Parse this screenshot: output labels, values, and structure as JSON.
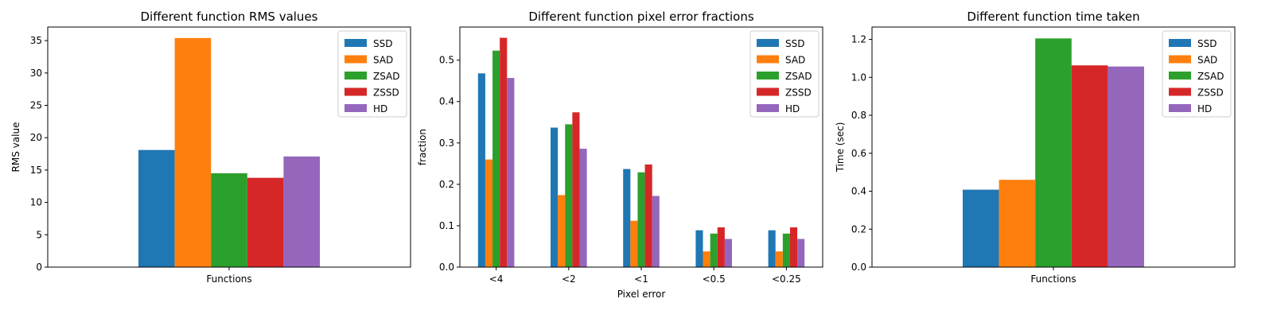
{
  "palette": {
    "SSD": "#1f77b4",
    "SAD": "#ff7f0e",
    "ZSAD": "#2ca02c",
    "ZSSD": "#d62728",
    "HD": "#9467bd"
  },
  "chart_data": [
    {
      "type": "bar",
      "title": "Different function RMS values",
      "xlabel": "",
      "ylabel": "RMS value",
      "categories": [
        "Functions"
      ],
      "ylim": [
        0,
        37.1
      ],
      "yticks": [
        0,
        5,
        10,
        15,
        20,
        25,
        30,
        35
      ],
      "legend": "top-right",
      "series": [
        {
          "name": "SSD",
          "values": [
            18.1
          ]
        },
        {
          "name": "SAD",
          "values": [
            35.4
          ]
        },
        {
          "name": "ZSAD",
          "values": [
            14.5
          ]
        },
        {
          "name": "ZSSD",
          "values": [
            13.8
          ]
        },
        {
          "name": "HD",
          "values": [
            17.1
          ]
        }
      ]
    },
    {
      "type": "bar",
      "title": "Different function pixel error fractions",
      "xlabel": "Pixel error",
      "ylabel": "fraction",
      "categories": [
        "<4",
        "<2",
        "<1",
        "<0.5",
        "<0.25"
      ],
      "ylim": [
        0,
        0.58
      ],
      "yticks": [
        0.0,
        0.1,
        0.2,
        0.3,
        0.4,
        0.5
      ],
      "legend": "top-right",
      "series": [
        {
          "name": "SSD",
          "values": [
            0.468,
            0.337,
            0.237,
            0.089,
            0.089
          ]
        },
        {
          "name": "SAD",
          "values": [
            0.26,
            0.174,
            0.112,
            0.038,
            0.038
          ]
        },
        {
          "name": "ZSAD",
          "values": [
            0.523,
            0.345,
            0.229,
            0.081,
            0.081
          ]
        },
        {
          "name": "ZSSD",
          "values": [
            0.554,
            0.374,
            0.248,
            0.096,
            0.096
          ]
        },
        {
          "name": "HD",
          "values": [
            0.457,
            0.286,
            0.172,
            0.068,
            0.068
          ]
        }
      ]
    },
    {
      "type": "bar",
      "title": "Different function time taken",
      "xlabel": "",
      "ylabel": "Time (sec)",
      "categories": [
        "Functions"
      ],
      "ylim": [
        0,
        1.265
      ],
      "yticks": [
        0.0,
        0.2,
        0.4,
        0.6,
        0.8,
        1.0,
        1.2
      ],
      "legend": "top-right",
      "series": [
        {
          "name": "SSD",
          "values": [
            0.408
          ]
        },
        {
          "name": "SAD",
          "values": [
            0.46
          ]
        },
        {
          "name": "ZSAD",
          "values": [
            1.205
          ]
        },
        {
          "name": "ZSSD",
          "values": [
            1.063
          ]
        },
        {
          "name": "HD",
          "values": [
            1.057
          ]
        }
      ]
    }
  ]
}
